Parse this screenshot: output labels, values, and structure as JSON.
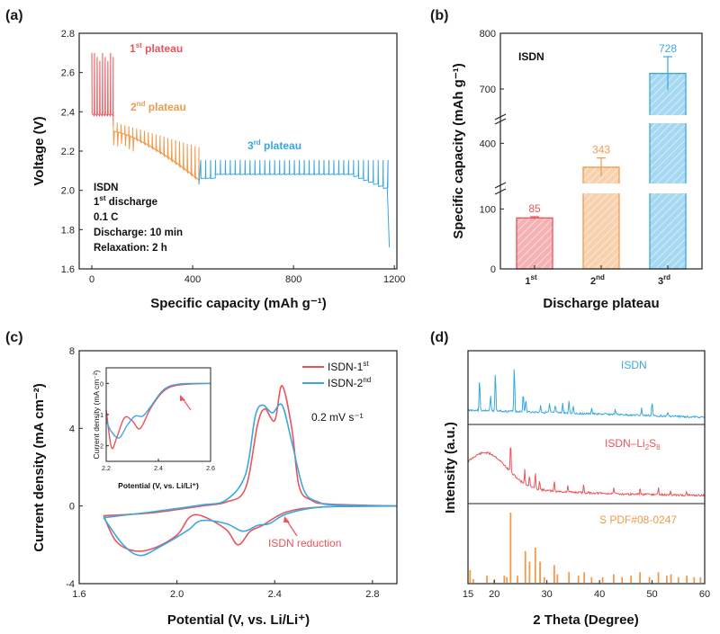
{
  "chart_data": [
    {
      "panel": "(a)",
      "type": "line",
      "xlabel": "Specific capacity (mAh g⁻¹)",
      "ylabel": "Voltage (V)",
      "xlim": [
        -50,
        1210
      ],
      "ylim": [
        1.6,
        2.8
      ],
      "xticks": [
        0,
        400,
        800,
        1200
      ],
      "yticks": [
        1.6,
        1.8,
        2.0,
        2.2,
        2.4,
        2.6,
        2.8
      ],
      "annotations": {
        "plateau1": {
          "base": "1",
          "sup": "st",
          "rest": " plateau",
          "color": "#e8555b"
        },
        "plateau2": {
          "base": "2",
          "sup": "nd",
          "rest": " plateau",
          "color": "#f19a4c"
        },
        "plateau3": {
          "base": "3",
          "sup": "rd",
          "rest": " plateau",
          "color": "#3aa8e0"
        }
      },
      "info": {
        "l1": "ISDN",
        "l2_base": "1",
        "l2_sup": "st",
        "l2_rest": " discharge",
        "l3": "0.1 C",
        "l4": "Discharge: 10 min",
        "l5": "Relaxation: 2 h"
      },
      "segments": [
        {
          "name": "1st plateau",
          "color": "#e8555b",
          "x_range": [
            0,
            85
          ],
          "upper": 2.7,
          "lower": 2.38
        },
        {
          "name": "2nd plateau",
          "color": "#f19a4c",
          "x_range": [
            85,
            425
          ],
          "upper_start": 2.35,
          "upper_end": 2.22,
          "lower_start": 2.3,
          "lower_end": 2.05
        },
        {
          "name": "3rd plateau",
          "color": "#3aa8e0",
          "x_range": [
            425,
            1175
          ],
          "upper": 2.155,
          "lower": 2.08,
          "end_drop": 1.71
        }
      ]
    },
    {
      "panel": "(b)",
      "type": "bar",
      "title": "ISDN",
      "xlabel": "Discharge plateau",
      "ylabel": "Specific capacity (mAh g⁻¹)",
      "categories": [
        {
          "base": "1",
          "sup": "st"
        },
        {
          "base": "2",
          "sup": "nd"
        },
        {
          "base": "3",
          "sup": "rd"
        }
      ],
      "values": [
        85,
        343,
        728
      ],
      "value_labels": [
        "85",
        "343",
        "728"
      ],
      "errors": [
        2,
        22,
        30
      ],
      "colors": [
        "#e8555b",
        "#f19a4c",
        "#3aa8e0"
      ],
      "yticks": [
        0,
        100,
        400,
        700,
        800
      ],
      "ylim": [
        0,
        800
      ],
      "axis_breaks": [
        [
          120,
          300
        ],
        [
          450,
          650
        ]
      ]
    },
    {
      "panel": "(c)",
      "type": "line",
      "xlabel": "Potential (V, vs. Li/Li⁺)",
      "ylabel": "Current density (mA cm⁻²)",
      "xlim": [
        1.6,
        2.9
      ],
      "ylim": [
        -4,
        8
      ],
      "xticks": [
        1.6,
        2.0,
        2.4,
        2.8
      ],
      "yticks": [
        -4,
        0,
        4,
        8
      ],
      "scan_rate": "0.2 mV s⁻¹",
      "reduction_label": "ISDN reduction",
      "series": [
        {
          "name_base": "ISDN-1",
          "name_sup": "st",
          "color": "#e8555b",
          "anodic": [
            [
              1.7,
              -0.5
            ],
            [
              1.9,
              -0.35
            ],
            [
              2.1,
              0.0
            ],
            [
              2.2,
              0.2
            ],
            [
              2.28,
              0.9
            ],
            [
              2.33,
              4.2
            ],
            [
              2.36,
              5.0
            ],
            [
              2.4,
              4.4
            ],
            [
              2.43,
              6.2
            ],
            [
              2.47,
              4.0
            ],
            [
              2.5,
              1.0
            ],
            [
              2.55,
              0.3
            ],
            [
              2.62,
              0.1
            ],
            [
              2.9,
              0.0
            ]
          ],
          "cathodic": [
            [
              2.9,
              0.0
            ],
            [
              2.6,
              -0.05
            ],
            [
              2.45,
              -0.3
            ],
            [
              2.35,
              -1.0
            ],
            [
              2.3,
              -1.3
            ],
            [
              2.25,
              -2.0
            ],
            [
              2.2,
              -1.2
            ],
            [
              2.1,
              -0.5
            ],
            [
              2.05,
              -0.6
            ],
            [
              2.0,
              -1.5
            ],
            [
              1.9,
              -2.2
            ],
            [
              1.82,
              -2.3
            ],
            [
              1.75,
              -1.8
            ],
            [
              1.7,
              -0.5
            ]
          ]
        },
        {
          "name_base": "ISDN-2",
          "name_sup": "nd",
          "color": "#3aa8e0",
          "anodic": [
            [
              1.7,
              -0.6
            ],
            [
              1.9,
              -0.3
            ],
            [
              2.1,
              0.05
            ],
            [
              2.2,
              0.3
            ],
            [
              2.28,
              1.6
            ],
            [
              2.32,
              4.6
            ],
            [
              2.35,
              5.2
            ],
            [
              2.39,
              4.8
            ],
            [
              2.43,
              5.2
            ],
            [
              2.47,
              3.3
            ],
            [
              2.52,
              0.8
            ],
            [
              2.58,
              0.2
            ],
            [
              2.65,
              0.05
            ],
            [
              2.9,
              0.0
            ]
          ],
          "cathodic": [
            [
              2.9,
              0.0
            ],
            [
              2.6,
              -0.05
            ],
            [
              2.45,
              -0.4
            ],
            [
              2.38,
              -0.9
            ],
            [
              2.33,
              -1.0
            ],
            [
              2.27,
              -1.3
            ],
            [
              2.2,
              -0.9
            ],
            [
              2.1,
              -0.75
            ],
            [
              2.05,
              -1.2
            ],
            [
              2.0,
              -1.6
            ],
            [
              1.93,
              -2.1
            ],
            [
              1.85,
              -2.55
            ],
            [
              1.78,
              -2.0
            ],
            [
              1.7,
              -0.6
            ]
          ]
        }
      ],
      "inset": {
        "xlabel": "Potential (V, vs. Li/Li⁺)",
        "ylabel": "Current density (mA cm⁻²)",
        "xlim": [
          2.2,
          2.6
        ],
        "ylim": [
          -2.5,
          0.5
        ],
        "xticks": [
          "2.2",
          "2.4",
          "2.6"
        ],
        "yticks": [
          "0",
          "-1",
          "-2"
        ],
        "red": [
          [
            2.2,
            -0.85
          ],
          [
            2.22,
            -2.05
          ],
          [
            2.24,
            -1.75
          ],
          [
            2.27,
            -1.1
          ],
          [
            2.3,
            -1.2
          ],
          [
            2.33,
            -1.45
          ],
          [
            2.37,
            -0.8
          ],
          [
            2.42,
            -0.25
          ],
          [
            2.48,
            -0.05
          ],
          [
            2.6,
            0.0
          ]
        ],
        "blue": [
          [
            2.2,
            -1.2
          ],
          [
            2.22,
            -1.55
          ],
          [
            2.25,
            -1.75
          ],
          [
            2.28,
            -1.35
          ],
          [
            2.31,
            -1.05
          ],
          [
            2.34,
            -1.05
          ],
          [
            2.37,
            -0.75
          ],
          [
            2.42,
            -0.2
          ],
          [
            2.48,
            -0.02
          ],
          [
            2.6,
            0.0
          ]
        ]
      }
    },
    {
      "panel": "(d)",
      "type": "line",
      "xlabel": "2 Theta (Degree)",
      "ylabel": "Intensity (a.u.)",
      "xlim": [
        15,
        60
      ],
      "xticks": [
        20,
        30,
        40,
        50,
        60
      ],
      "xtick_minor": [
        15
      ],
      "series": [
        {
          "name": "ISDN",
          "color": "#3aa8e0",
          "peaks": [
            [
              17.2,
              0.65
            ],
            [
              19.3,
              0.3
            ],
            [
              20.2,
              0.8
            ],
            [
              23.8,
              0.95
            ],
            [
              25.5,
              0.4
            ],
            [
              26.0,
              0.25
            ],
            [
              28.8,
              0.15
            ],
            [
              30.5,
              0.18
            ],
            [
              31.6,
              0.15
            ],
            [
              33.0,
              0.2
            ],
            [
              34.2,
              0.25
            ],
            [
              35.0,
              0.15
            ],
            [
              38.5,
              0.12
            ],
            [
              43.0,
              0.1
            ],
            [
              48.0,
              0.14
            ],
            [
              50.0,
              0.28
            ],
            [
              53.0,
              0.08
            ]
          ]
        },
        {
          "label_base": "ISDN–Li",
          "label_sub1": "2",
          "label_mid": "S",
          "label_sub2": "8",
          "color": "#e8555b",
          "peaks": [
            [
              23.1,
              1.0
            ],
            [
              25.8,
              0.45
            ],
            [
              26.7,
              0.38
            ],
            [
              27.8,
              0.5
            ],
            [
              28.6,
              0.3
            ],
            [
              31.4,
              0.35
            ],
            [
              34.0,
              0.2
            ],
            [
              37.0,
              0.25
            ],
            [
              42.7,
              0.18
            ],
            [
              47.7,
              0.22
            ],
            [
              51.2,
              0.25
            ],
            [
              53.5,
              0.12
            ],
            [
              56.5,
              0.1
            ]
          ]
        },
        {
          "name": "S  PDF#08-0247",
          "color": "#f19a4c",
          "peaks": [
            [
              15.4,
              0.18
            ],
            [
              16.0,
              0.05
            ],
            [
              18.6,
              0.1
            ],
            [
              20.0,
              0.05
            ],
            [
              21.9,
              0.1
            ],
            [
              22.4,
              0.08
            ],
            [
              23.1,
              1.0
            ],
            [
              24.4,
              0.1
            ],
            [
              25.9,
              0.45
            ],
            [
              26.7,
              0.3
            ],
            [
              27.8,
              0.5
            ],
            [
              28.7,
              0.3
            ],
            [
              29.5,
              0.08
            ],
            [
              31.4,
              0.25
            ],
            [
              32.0,
              0.12
            ],
            [
              34.2,
              0.15
            ],
            [
              36.0,
              0.1
            ],
            [
              37.1,
              0.15
            ],
            [
              38.5,
              0.08
            ],
            [
              40.6,
              0.08
            ],
            [
              42.7,
              0.12
            ],
            [
              44.3,
              0.08
            ],
            [
              46.0,
              0.1
            ],
            [
              47.7,
              0.15
            ],
            [
              49.5,
              0.08
            ],
            [
              51.2,
              0.15
            ],
            [
              52.8,
              0.1
            ],
            [
              53.6,
              0.12
            ],
            [
              55.0,
              0.08
            ],
            [
              56.6,
              0.1
            ],
            [
              58.0,
              0.08
            ],
            [
              59.2,
              0.08
            ]
          ]
        }
      ]
    }
  ]
}
